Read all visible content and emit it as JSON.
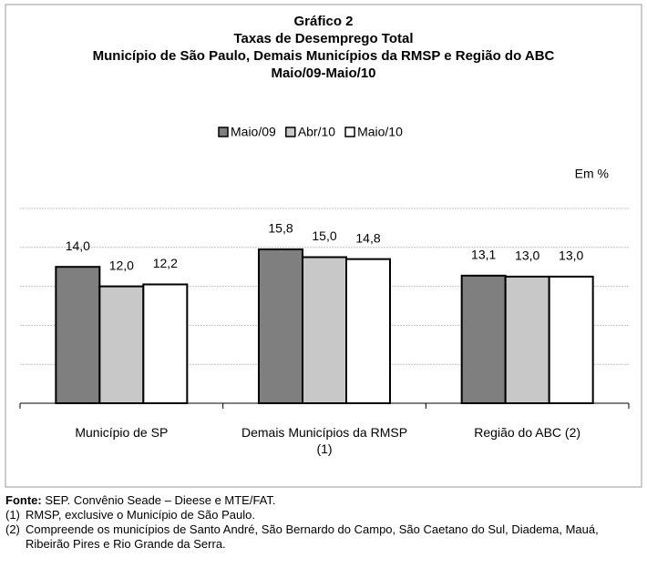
{
  "chart_data": {
    "type": "bar",
    "title": [
      "Gráfico 2",
      "Taxas de Desemprego Total",
      "Município de São Paulo, Demais Municípios da RMSP e Região do ABC",
      "Maio/09-Maio/10"
    ],
    "unit_label": "Em %",
    "categories": [
      "Município de SP",
      "Demais Municípios da RMSP (1)",
      "Região do ABC (2)"
    ],
    "series": [
      {
        "name": "Maio/09",
        "color": "#7f7f7f",
        "values": [
          14.0,
          15.8,
          13.1
        ],
        "value_labels": [
          "14,0",
          "15,8",
          "13,1"
        ]
      },
      {
        "name": "Abr/10",
        "color": "#c8c8c8",
        "values": [
          12.0,
          15.0,
          13.0
        ],
        "value_labels": [
          "12,0",
          "15,0",
          "13,0"
        ]
      },
      {
        "name": "Maio/10",
        "color": "#ffffff",
        "values": [
          12.2,
          14.8,
          13.0
        ],
        "value_labels": [
          "12,2",
          "14,8",
          "13,0"
        ]
      }
    ],
    "ylim": [
      0,
      20
    ],
    "yticks": [
      0,
      4,
      8,
      12,
      16,
      20
    ],
    "grid": true,
    "legend": "top"
  },
  "source": {
    "label": "Fonte:",
    "text": "SEP. Convênio Seade – Dieese e MTE/FAT."
  },
  "notes": [
    {
      "marker": "(1)",
      "text": "RMSP, exclusive o Município de São Paulo."
    },
    {
      "marker": "(2)",
      "text": "Compreende os municípios de Santo André, São Bernardo do Campo, São Caetano do Sul, Diadema, Mauá, Ribeirão Pires e Rio Grande da Serra."
    }
  ]
}
